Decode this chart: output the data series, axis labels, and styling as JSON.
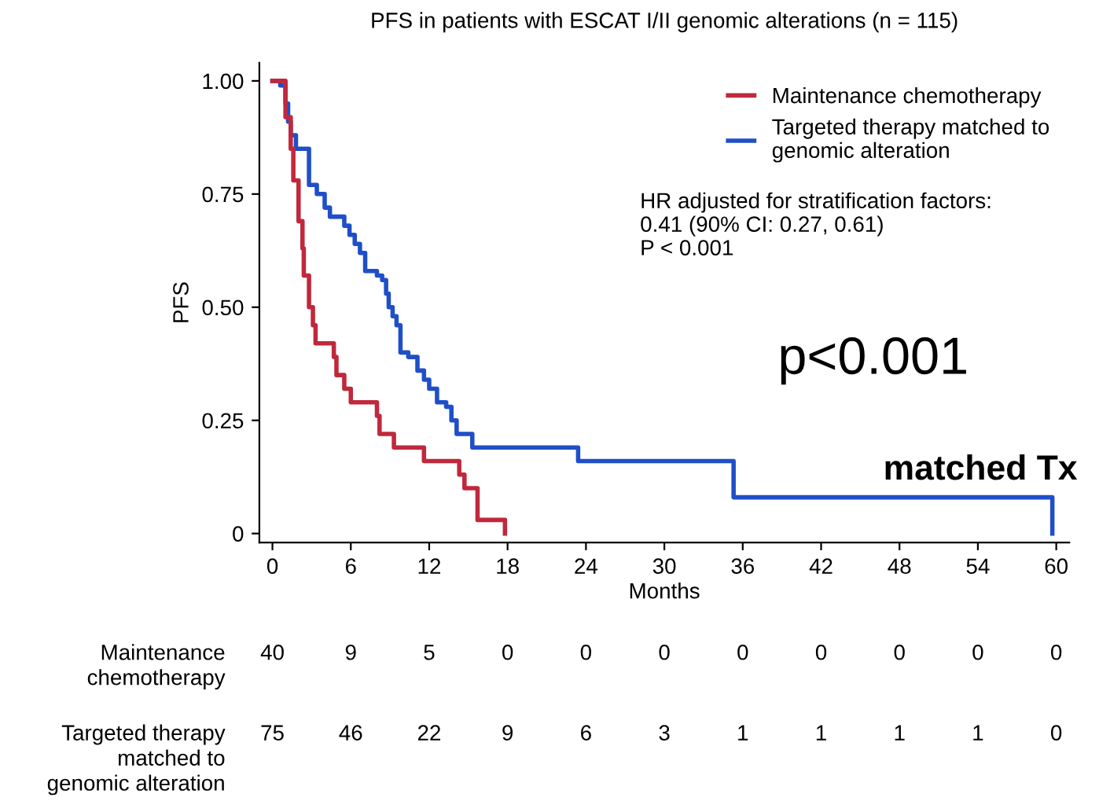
{
  "chart_data": {
    "type": "step",
    "title": "PFS in patients with ESCAT I/II genomic alterations (n = 115)",
    "xlabel": "Months",
    "ylabel": "PFS",
    "series": [
      {
        "name": "Maintenance chemotherapy",
        "color": "#c0283c",
        "x": [
          0,
          1.0,
          1.4,
          1.6,
          2.0,
          2.3,
          2.4,
          2.8,
          3.1,
          3.3,
          4.7,
          4.9,
          5.5,
          6.0,
          8.0,
          8.2,
          9.3,
          11.6,
          14.3,
          14.7,
          15.7,
          17.8
        ],
        "values": [
          1.0,
          0.92,
          0.85,
          0.78,
          0.69,
          0.63,
          0.57,
          0.5,
          0.46,
          0.42,
          0.39,
          0.35,
          0.32,
          0.29,
          0.26,
          0.22,
          0.19,
          0.16,
          0.13,
          0.1,
          0.03,
          0.0
        ]
      },
      {
        "name": "Targeted therapy matched to\ngenomic alteration",
        "color": "#1f4fc8",
        "x": [
          0,
          0.6,
          1.0,
          1.2,
          1.4,
          1.8,
          2.8,
          3.4,
          4.0,
          4.4,
          5.5,
          5.9,
          6.3,
          6.7,
          7.1,
          8.0,
          8.4,
          8.7,
          8.9,
          9.2,
          9.5,
          9.8,
          10.4,
          11.1,
          11.6,
          12.0,
          12.6,
          13.3,
          13.7,
          14.1,
          15.3,
          23.4,
          35.3,
          59.7
        ],
        "values": [
          1.0,
          0.99,
          0.95,
          0.91,
          0.88,
          0.85,
          0.77,
          0.75,
          0.72,
          0.7,
          0.68,
          0.66,
          0.64,
          0.62,
          0.58,
          0.57,
          0.56,
          0.53,
          0.5,
          0.48,
          0.46,
          0.4,
          0.39,
          0.36,
          0.34,
          0.32,
          0.29,
          0.28,
          0.25,
          0.22,
          0.19,
          0.16,
          0.08,
          0.0
        ]
      }
    ],
    "xlim": [
      -1,
      61
    ],
    "ylim": [
      -0.02,
      1.04
    ],
    "xticks": [
      0,
      6,
      12,
      18,
      24,
      30,
      36,
      42,
      48,
      54,
      60
    ],
    "yticks": [
      {
        "value": 0,
        "label": "0"
      },
      {
        "value": 0.25,
        "label": "0.25"
      },
      {
        "value": 0.5,
        "label": "0.50"
      },
      {
        "value": 0.75,
        "label": "0.75"
      },
      {
        "value": 1,
        "label": "1.00"
      }
    ],
    "legend": "top right",
    "grid": false,
    "annotations": [
      "HR adjusted for stratification factors:\n0.41 (90% CI: 0.27, 0.61)\nP < 0.001",
      "p<0.001",
      "matched Tx",
      "Maintenance\nchemotherapy",
      "40",
      "9",
      "5",
      "0",
      "0",
      "0",
      "0",
      "0",
      "0",
      "0",
      "0",
      "Targeted therapy\nmatched to\ngenomic alteration",
      "75",
      "46",
      "22",
      "9",
      "6",
      "3",
      "1",
      "1",
      "1",
      "1",
      "0"
    ]
  }
}
